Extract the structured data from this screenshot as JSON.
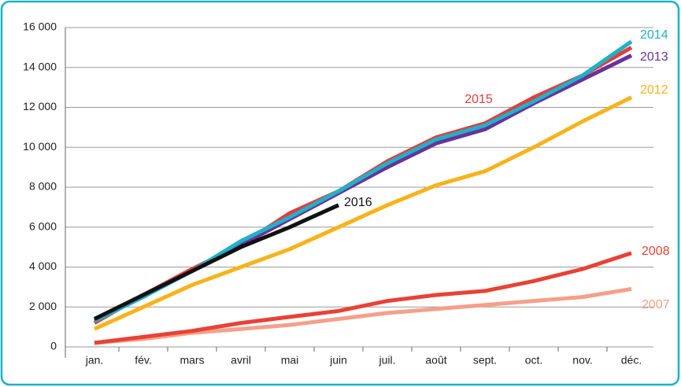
{
  "chart_data": {
    "type": "line",
    "categories": [
      "jan.",
      "fév.",
      "mars",
      "avril",
      "mai",
      "juin",
      "juil.",
      "août",
      "sept.",
      "oct.",
      "nov.",
      "déc."
    ],
    "ylim": [
      0,
      16000
    ],
    "yticks": [
      0,
      {
        "value": 2000,
        "label": "2 000"
      },
      {
        "value": 4000,
        "label": "4 000"
      },
      {
        "value": 6000,
        "label": "6 000"
      },
      {
        "value": 8000,
        "label": "8 000"
      },
      {
        "value": 10000,
        "label": "10 000"
      },
      {
        "value": 12000,
        "label": "12 000"
      },
      {
        "value": 14000,
        "label": "14 000"
      },
      {
        "value": 16000,
        "label": "16 000"
      }
    ],
    "grid": true,
    "series": [
      {
        "name": "2007",
        "color": "#f4a08a",
        "values": [
          200,
          400,
          700,
          900,
          1100,
          1400,
          1700,
          1900,
          2100,
          2300,
          2500,
          2900
        ]
      },
      {
        "name": "2008",
        "color": "#e84236",
        "values": [
          200,
          500,
          800,
          1200,
          1500,
          1800,
          2300,
          2600,
          2800,
          3300,
          3900,
          4700
        ]
      },
      {
        "name": "2012",
        "color": "#f7b31c",
        "values": [
          900,
          2000,
          3100,
          4000,
          4900,
          6000,
          7100,
          8100,
          8800,
          10000,
          11300,
          12500
        ]
      },
      {
        "name": "2015",
        "color": "#e63b3b",
        "values": [
          1200,
          2600,
          3900,
          5100,
          6700,
          7800,
          9300,
          10500,
          11200,
          12500,
          13600,
          15000
        ]
      },
      {
        "name": "2013",
        "color": "#6a3396",
        "values": [
          1300,
          2600,
          3800,
          5100,
          6400,
          7700,
          9000,
          10200,
          10900,
          12200,
          13400,
          14600
        ]
      },
      {
        "name": "2014",
        "color": "#1fb1c8",
        "values": [
          1300,
          2500,
          3800,
          5300,
          6500,
          7800,
          9200,
          10400,
          11100,
          12300,
          13600,
          15300
        ]
      },
      {
        "name": "2016",
        "color": "#111111",
        "values": [
          1400,
          2600,
          3800,
          5000,
          6000,
          7100,
          null,
          null,
          null,
          null,
          null,
          null
        ]
      }
    ]
  }
}
